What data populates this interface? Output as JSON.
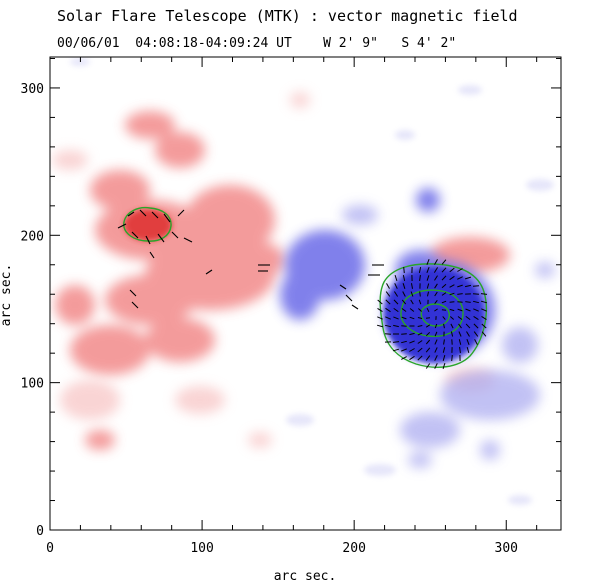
{
  "header": {
    "title": "Solar Flare Telescope (MTK) : vector magnetic field",
    "subtitle": "00/06/01  04:08:18-04:09:24 UT    W 2' 9\"   S 4' 2\""
  },
  "axes": {
    "xlabel": "arc sec.",
    "ylabel": "arc sec.",
    "x_ticks": [
      0,
      100,
      200,
      300
    ],
    "y_ticks": [
      0,
      100,
      200,
      300
    ],
    "xlim": [
      0,
      336
    ],
    "ylim": [
      0,
      321
    ]
  },
  "colors": {
    "positive_polarity": "#f06060",
    "negative_polarity": "#6a6ae8",
    "contour": "#2aa52a",
    "vectors": "#000000"
  }
}
